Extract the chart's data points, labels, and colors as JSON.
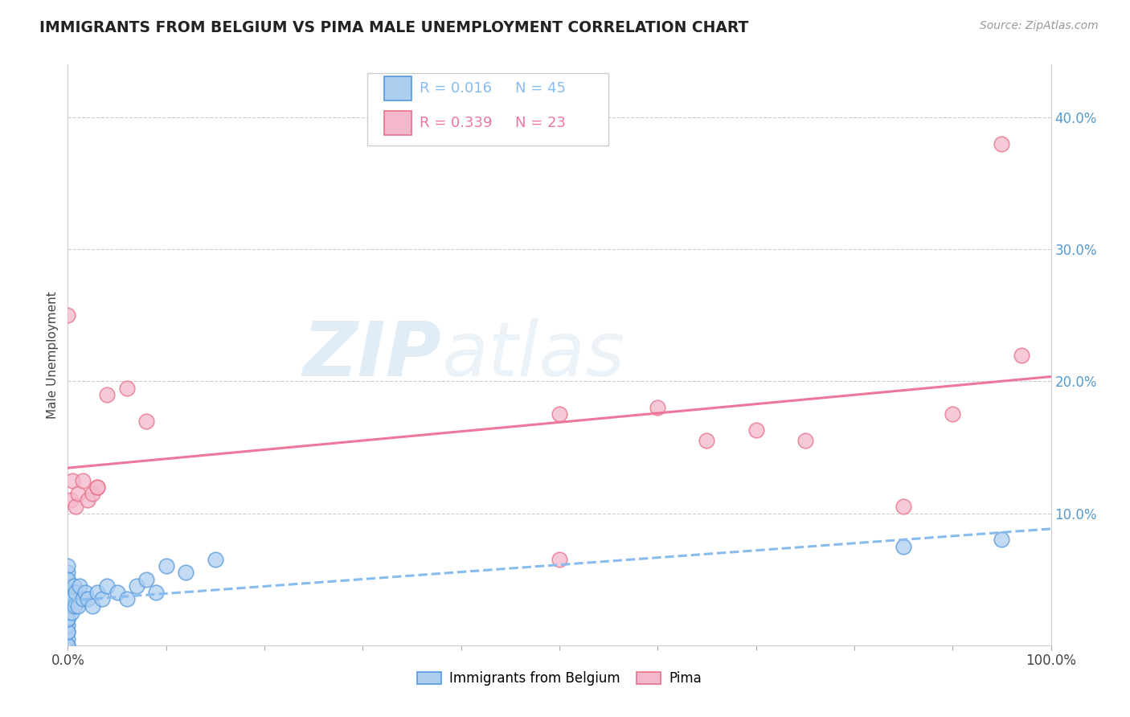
{
  "title": "IMMIGRANTS FROM BELGIUM VS PIMA MALE UNEMPLOYMENT CORRELATION CHART",
  "source_text": "Source: ZipAtlas.com",
  "ylabel": "Male Unemployment",
  "xlim": [
    0.0,
    1.0
  ],
  "ylim": [
    0.0,
    0.44
  ],
  "xticks": [
    0.0,
    0.1,
    0.2,
    0.3,
    0.4,
    0.5,
    0.6,
    0.7,
    0.8,
    0.9,
    1.0
  ],
  "xticklabels": [
    "0.0%",
    "",
    "",
    "",
    "",
    "",
    "",
    "",
    "",
    "",
    "100.0%"
  ],
  "yticks": [
    0.0,
    0.1,
    0.2,
    0.3,
    0.4
  ],
  "yticklabels": [
    "",
    "10.0%",
    "20.0%",
    "30.0%",
    "40.0%"
  ],
  "blue_R": "0.016",
  "blue_N": "45",
  "pink_R": "0.339",
  "pink_N": "23",
  "blue_color": "#aecef0",
  "blue_edge_color": "#5599dd",
  "pink_color": "#f4b8cc",
  "pink_edge_color": "#e8708a",
  "blue_trend_color": "#88bbee",
  "pink_trend_color": "#ee7799",
  "watermark_zip": "ZIP",
  "watermark_atlas": "atlas",
  "blue_x": [
    0.0,
    0.0,
    0.0,
    0.0,
    0.0,
    0.0,
    0.0,
    0.0,
    0.0,
    0.0,
    0.0,
    0.0,
    0.0,
    0.0,
    0.0,
    0.0,
    0.0,
    0.0,
    0.0,
    0.0,
    0.003,
    0.004,
    0.005,
    0.006,
    0.007,
    0.008,
    0.01,
    0.012,
    0.015,
    0.018,
    0.02,
    0.025,
    0.03,
    0.035,
    0.04,
    0.05,
    0.06,
    0.07,
    0.08,
    0.09,
    0.1,
    0.12,
    0.15,
    0.85,
    0.95
  ],
  "blue_y": [
    0.0,
    0.005,
    0.01,
    0.015,
    0.02,
    0.025,
    0.03,
    0.035,
    0.04,
    0.045,
    0.05,
    0.055,
    0.06,
    0.0,
    0.01,
    0.02,
    0.03,
    0.04,
    0.05,
    0.035,
    0.04,
    0.025,
    0.035,
    0.045,
    0.03,
    0.04,
    0.03,
    0.045,
    0.035,
    0.04,
    0.035,
    0.03,
    0.04,
    0.035,
    0.045,
    0.04,
    0.035,
    0.045,
    0.05,
    0.04,
    0.06,
    0.055,
    0.065,
    0.075,
    0.08
  ],
  "pink_x": [
    0.0,
    0.003,
    0.005,
    0.008,
    0.01,
    0.015,
    0.02,
    0.025,
    0.03,
    0.04,
    0.06,
    0.08,
    0.5,
    0.6,
    0.65,
    0.7,
    0.75,
    0.85,
    0.9,
    0.95,
    0.97,
    0.03,
    0.5
  ],
  "pink_y": [
    0.25,
    0.11,
    0.125,
    0.105,
    0.115,
    0.125,
    0.11,
    0.115,
    0.12,
    0.19,
    0.195,
    0.17,
    0.175,
    0.18,
    0.155,
    0.163,
    0.155,
    0.105,
    0.175,
    0.38,
    0.22,
    0.12,
    0.065
  ]
}
